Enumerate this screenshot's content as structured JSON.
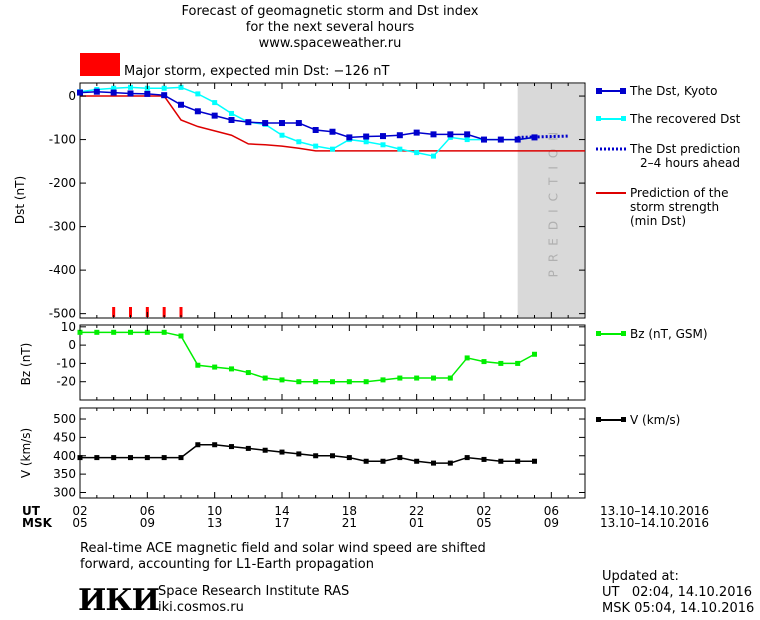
{
  "header": {
    "line1": "Forecast of geomagnetic storm and Dst index",
    "line2": "for the next several hours",
    "line3": "www.spaceweather.ru",
    "storm_label": "Major storm, expected min Dst: −126 nT",
    "storm_color": "#ff0000"
  },
  "prediction_text": "PREDICTION",
  "time_axis": {
    "ut_label": "UT",
    "msk_label": "MSK",
    "ut_ticks": [
      "02",
      "06",
      "10",
      "14",
      "18",
      "22",
      "02",
      "06"
    ],
    "msk_ticks": [
      "05",
      "09",
      "13",
      "17",
      "21",
      "01",
      "05",
      "09"
    ],
    "ut_range": "13.10–14.10.2016",
    "msk_range": "13.10–14.10.2016"
  },
  "footer": {
    "note_line1": "Real-time ACE magnetic field and solar wind speed are shifted",
    "note_line2": "forward, accounting for L1-Earth propagation",
    "logo_text": "ИКИ",
    "institute": "Space Research Institute RAS",
    "website": "iki.cosmos.ru",
    "updated_label": "Updated at:",
    "updated_ut": "UT   02:04, 14.10.2016",
    "updated_msk": "MSK 05:04, 14.10.2016"
  },
  "colors": {
    "dst_kyoto": "#0000cc",
    "dst_recovered": "#00ffff",
    "dst_prediction": "#0000cc",
    "storm_strength": "#dd0000",
    "bz": "#00ee00",
    "v": "#000000",
    "prediction_band": "#d9d9d9"
  },
  "chart_data": [
    {
      "type": "line",
      "title": "Forecast of geomagnetic storm and Dst index",
      "ylabel": "Dst (nT)",
      "xlabel": "UT hours",
      "xlim": [
        2,
        32
      ],
      "ylim": [
        -510,
        30
      ],
      "yticks": [
        0,
        -100,
        -200,
        -300,
        -400,
        -500
      ],
      "prediction_region": [
        28,
        32
      ],
      "series": [
        {
          "name": "The Dst, Kyoto",
          "x": [
            2,
            3,
            4,
            5,
            6,
            7,
            8,
            9,
            10,
            11,
            12,
            13,
            14,
            15,
            16,
            17,
            18,
            19,
            20,
            21,
            22,
            23,
            24,
            25,
            26,
            27,
            28,
            29
          ],
          "y": [
            8,
            10,
            8,
            6,
            5,
            2,
            -20,
            -35,
            -45,
            -55,
            -60,
            -62,
            -62,
            -62,
            -78,
            -82,
            -95,
            -93,
            -92,
            -90,
            -84,
            -88,
            -88,
            -88,
            -100,
            -100,
            -100,
            -95
          ]
        },
        {
          "name": "The recovered Dst",
          "x": [
            2,
            3,
            4,
            5,
            6,
            7,
            8,
            9,
            10,
            11,
            12,
            13,
            14,
            15,
            16,
            17,
            18,
            19,
            20,
            21,
            22,
            23,
            24,
            25,
            26,
            27,
            28,
            29
          ],
          "y": [
            10,
            15,
            18,
            20,
            18,
            18,
            20,
            5,
            -15,
            -40,
            -60,
            -65,
            -90,
            -105,
            -115,
            -122,
            -100,
            -105,
            -112,
            -122,
            -130,
            -138,
            -95,
            -100,
            -100,
            -100,
            -100,
            -95
          ]
        },
        {
          "name": "The Dst prediction 2–4 hours ahead",
          "x": [
            28,
            31
          ],
          "y": [
            -95,
            -92
          ],
          "style": "dotted"
        },
        {
          "name": "Prediction of the storm strength (min Dst)",
          "x": [
            2,
            7,
            8,
            9,
            10,
            11,
            12,
            13,
            14,
            15,
            16,
            17,
            32
          ],
          "y": [
            0,
            0,
            -55,
            -70,
            -80,
            -90,
            -110,
            -112,
            -115,
            -120,
            -126,
            -126,
            -126
          ]
        }
      ],
      "event_markers_x": [
        4,
        5,
        6,
        7,
        8
      ]
    },
    {
      "type": "line",
      "ylabel": "Bz (nT)",
      "ylim": [
        -30,
        11
      ],
      "yticks": [
        10,
        0,
        -10,
        -20
      ],
      "series": [
        {
          "name": "Bz (nT, GSM)",
          "x": [
            2,
            3,
            4,
            5,
            6,
            7,
            8,
            9,
            10,
            11,
            12,
            13,
            14,
            15,
            16,
            17,
            18,
            19,
            20,
            21,
            22,
            23,
            24,
            25,
            26,
            27,
            28,
            29
          ],
          "y": [
            7,
            7,
            7,
            7,
            7,
            7,
            5,
            -11,
            -12,
            -13,
            -15,
            -18,
            -19,
            -20,
            -20,
            -20,
            -20,
            -20,
            -19,
            -18,
            -18,
            -18,
            -18,
            -7,
            -9,
            -10,
            -10,
            -5
          ]
        }
      ]
    },
    {
      "type": "line",
      "ylabel": "V (km/s)",
      "ylim": [
        285,
        530
      ],
      "yticks": [
        500,
        450,
        400,
        350,
        300
      ],
      "series": [
        {
          "name": "V (km/s)",
          "x": [
            2,
            3,
            4,
            5,
            6,
            7,
            8,
            9,
            10,
            11,
            12,
            13,
            14,
            15,
            16,
            17,
            18,
            19,
            20,
            21,
            22,
            23,
            24,
            25,
            26,
            27,
            28,
            29
          ],
          "y": [
            395,
            395,
            395,
            395,
            395,
            395,
            395,
            430,
            430,
            425,
            420,
            415,
            410,
            405,
            400,
            400,
            395,
            385,
            385,
            395,
            385,
            380,
            380,
            395,
            390,
            385,
            385,
            385
          ]
        }
      ]
    }
  ]
}
